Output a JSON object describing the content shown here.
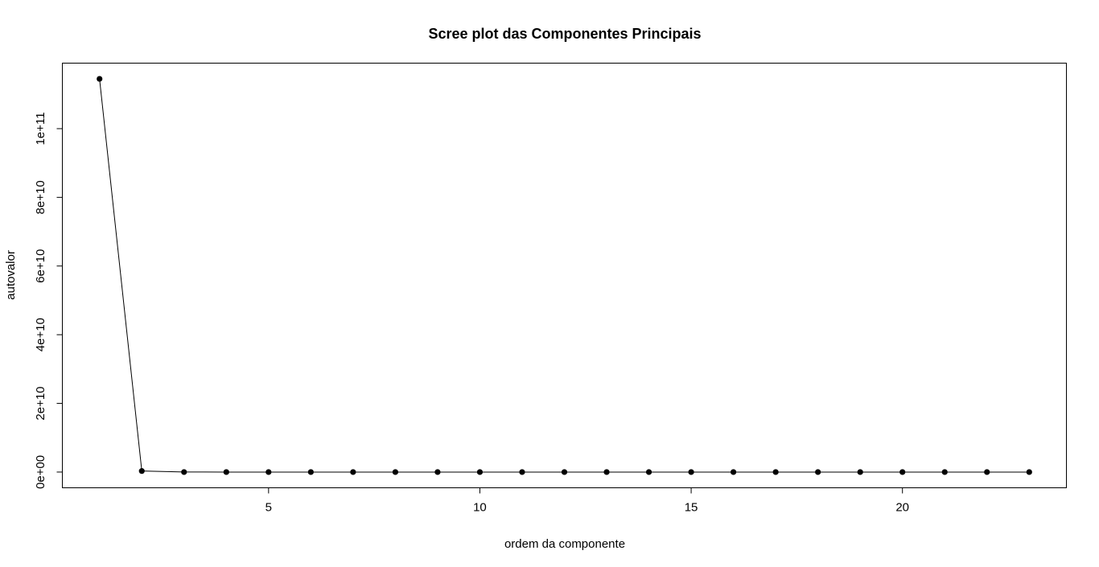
{
  "chart_data": {
    "type": "line",
    "title": "Scree plot das Componentes Principais",
    "xlabel": "ordem da componente",
    "ylabel": "autovalor",
    "x": [
      1,
      2,
      3,
      4,
      5,
      6,
      7,
      8,
      9,
      10,
      11,
      12,
      13,
      14,
      15,
      16,
      17,
      18,
      19,
      20,
      21,
      22,
      23
    ],
    "series": [
      {
        "values": [
          114500000000,
          300000000,
          5000000,
          2000000,
          1000000,
          500000,
          300000,
          200000,
          100000,
          80000,
          60000,
          50000,
          40000,
          30000,
          20000,
          15000,
          10000,
          8000,
          6000,
          4000,
          3000,
          2000,
          1000
        ],
        "color": "#000000",
        "marker": "filled-circle"
      }
    ],
    "x_ticks": [
      5,
      10,
      15,
      20
    ],
    "x_tick_labels": [
      "5",
      "10",
      "15",
      "20"
    ],
    "xlim": [
      0.12,
      23.88
    ],
    "y_ticks": [
      0,
      20000000000,
      40000000000,
      60000000000,
      80000000000,
      100000000000
    ],
    "y_tick_labels": [
      "0e+00",
      "2e+10",
      "4e+10",
      "6e+10",
      "8e+10",
      "1e+11"
    ],
    "ylim": [
      -4580000000,
      119080000000
    ],
    "grid": false,
    "legend": "none"
  }
}
